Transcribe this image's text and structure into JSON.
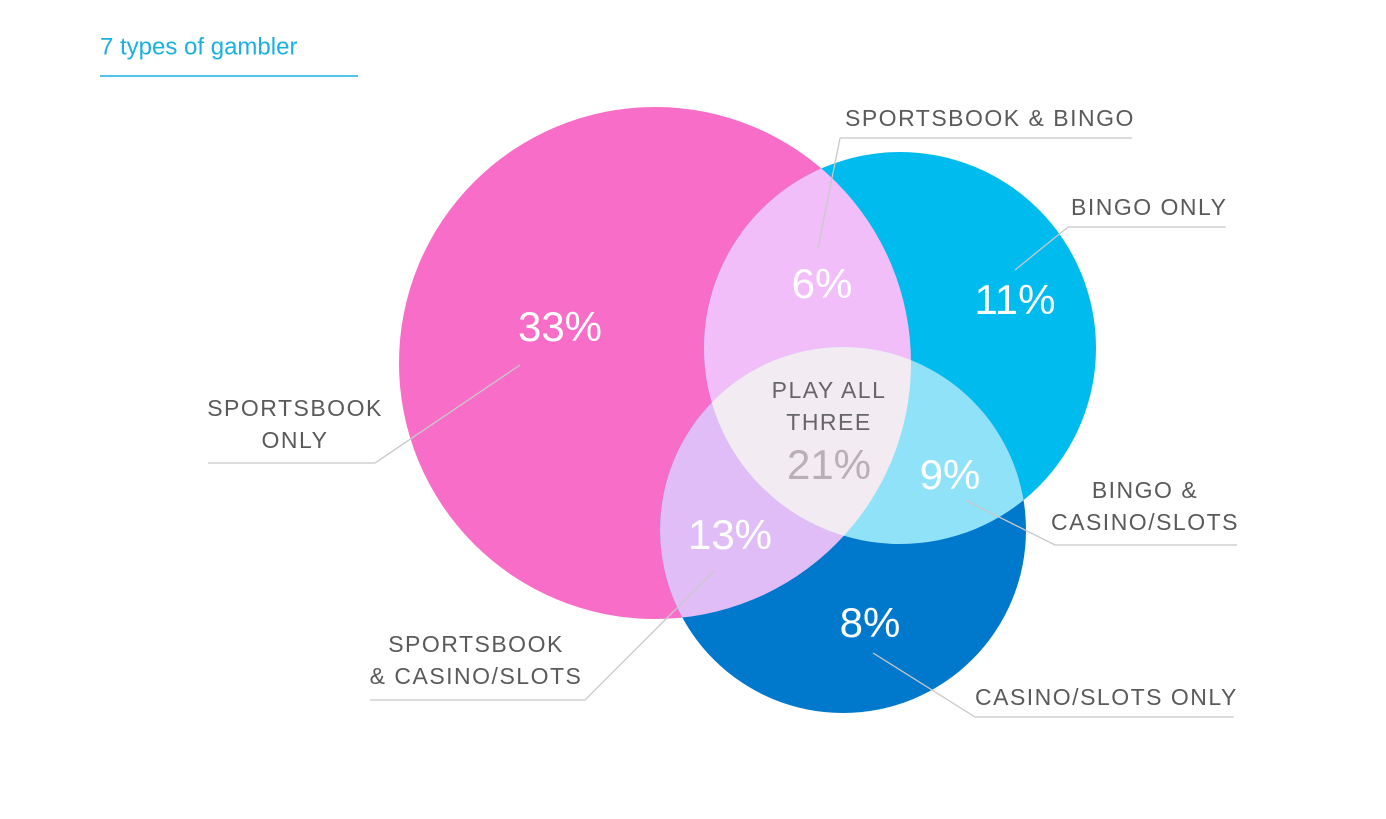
{
  "chart_data": {
    "type": "venn",
    "title": "7 types of gambler",
    "categories": [
      "SPORTSBOOK\nONLY",
      "SPORTSBOOK & BINGO",
      "BINGO ONLY",
      "PLAY ALL\nTHREE",
      "BINGO &\nCASINO/SLOTS",
      "SPORTSBOOK\n& CASINO/SLOTS",
      "CASINO/SLOTS ONLY"
    ],
    "values": [
      33,
      6,
      11,
      21,
      9,
      13,
      8
    ],
    "value_labels": [
      "33%",
      "6%",
      "11%",
      "21%",
      "9%",
      "13%",
      "8%"
    ]
  }
}
